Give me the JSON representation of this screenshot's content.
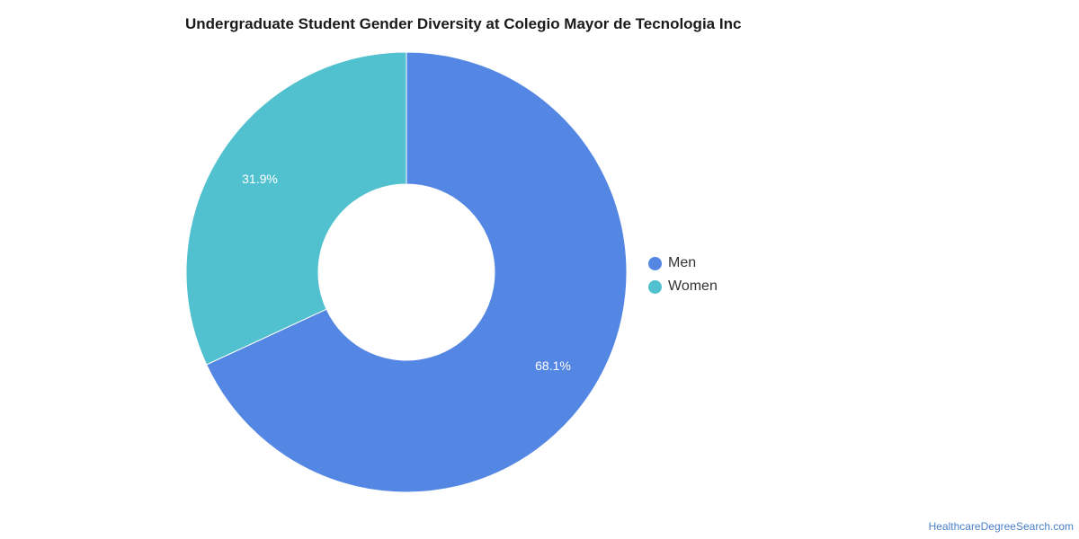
{
  "chart_data": {
    "type": "pie",
    "title": "Undergraduate Student Gender Diversity at Colegio Mayor de Tecnologia Inc",
    "categories": [
      "Men",
      "Women"
    ],
    "values": [
      68.1,
      31.9
    ],
    "labels": [
      "68.1%",
      "31.9%"
    ],
    "colors": [
      "#5486e3",
      "#52c1cf"
    ],
    "donut": true,
    "legend_position": "right"
  },
  "source": "HealthcareDegreeSearch.com"
}
